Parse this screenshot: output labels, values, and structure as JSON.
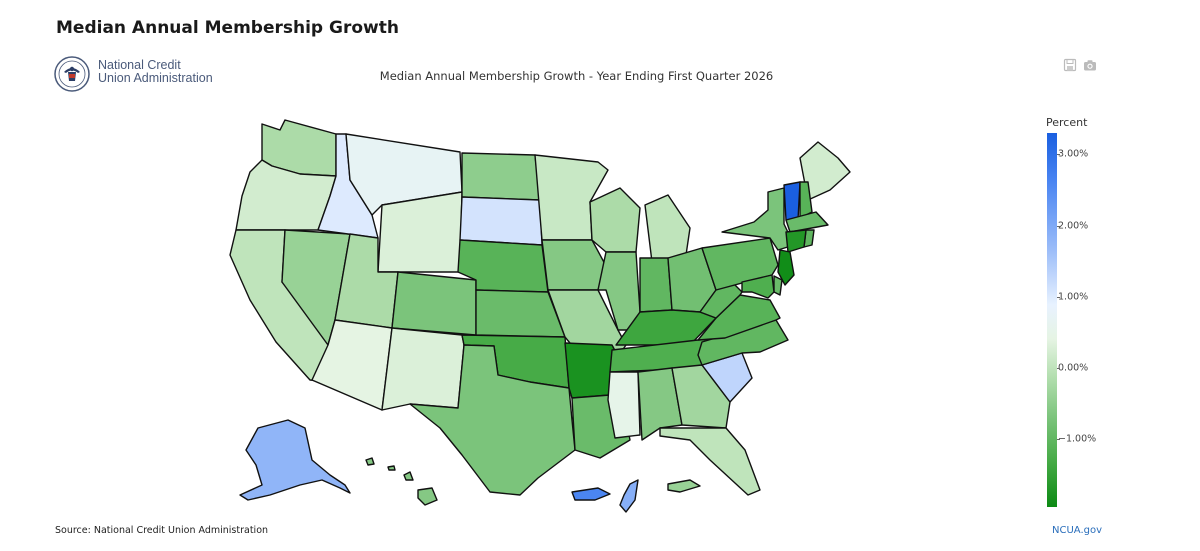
{
  "page": {
    "heading": "Median Annual Membership Growth",
    "logo_text_line1": "National Credit",
    "logo_text_line2": "Union Administration",
    "chart_title": "Median Annual Membership Growth - Year Ending First Quarter 2026",
    "source": "Source: National Credit Union Administration",
    "link": "NCUA.gov"
  },
  "toolbar": {
    "icons": [
      "save-icon",
      "camera-icon"
    ]
  },
  "chart_data": {
    "type": "choropleth",
    "colorbar": {
      "title": "Percent",
      "min": -1.95,
      "max": 3.3,
      "ticks": [
        {
          "value": 3.0,
          "label": "3.00%"
        },
        {
          "value": 2.0,
          "label": "2.00%"
        },
        {
          "value": 1.0,
          "label": "1.00%"
        },
        {
          "value": 0.0,
          "label": "0.00%"
        },
        {
          "value": -1.0,
          "label": "−1.00%"
        }
      ]
    },
    "colors": {
      "high": "#1a5fe0",
      "mid": "#e8f4f0",
      "low": "#0c8a14",
      "state_border": "#111111"
    },
    "states": [
      {
        "state": "WA",
        "value": -0.2
      },
      {
        "state": "OR",
        "value": 0.2
      },
      {
        "state": "CA",
        "value": 0.0
      },
      {
        "state": "NV",
        "value": -0.4
      },
      {
        "state": "ID",
        "value": 1.0
      },
      {
        "state": "MT",
        "value": 0.7
      },
      {
        "state": "WY",
        "value": 0.3
      },
      {
        "state": "UT",
        "value": -0.2
      },
      {
        "state": "AZ",
        "value": 0.4
      },
      {
        "state": "CO",
        "value": -0.7
      },
      {
        "state": "NM",
        "value": 0.3
      },
      {
        "state": "ND",
        "value": -0.5
      },
      {
        "state": "SD",
        "value": 1.1
      },
      {
        "state": "NE",
        "value": -1.1
      },
      {
        "state": "KS",
        "value": -0.9
      },
      {
        "state": "OK",
        "value": -1.3
      },
      {
        "state": "TX",
        "value": -0.7
      },
      {
        "state": "MN",
        "value": 0.1
      },
      {
        "state": "IA",
        "value": -0.6
      },
      {
        "state": "MO",
        "value": -0.3
      },
      {
        "state": "AR",
        "value": -1.8
      },
      {
        "state": "LA",
        "value": -0.9
      },
      {
        "state": "WI",
        "value": -0.2
      },
      {
        "state": "IL",
        "value": -0.6
      },
      {
        "state": "MI",
        "value": 0.0
      },
      {
        "state": "IN",
        "value": -1.0
      },
      {
        "state": "OH",
        "value": -0.8
      },
      {
        "state": "KY",
        "value": -1.4
      },
      {
        "state": "TN",
        "value": -1.2
      },
      {
        "state": "MS",
        "value": 0.5
      },
      {
        "state": "AL",
        "value": -0.6
      },
      {
        "state": "GA",
        "value": -0.3
      },
      {
        "state": "FL",
        "value": 0.0
      },
      {
        "state": "SC",
        "value": 1.3
      },
      {
        "state": "NC",
        "value": -1.0
      },
      {
        "state": "VA",
        "value": -1.1
      },
      {
        "state": "WV",
        "value": -1.0
      },
      {
        "state": "PA",
        "value": -1.0
      },
      {
        "state": "NY",
        "value": -0.7
      },
      {
        "state": "ME",
        "value": 0.2
      },
      {
        "state": "VT",
        "value": 3.3
      },
      {
        "state": "NH",
        "value": -1.1
      },
      {
        "state": "MA",
        "value": -0.9
      },
      {
        "state": "RI",
        "value": -1.0
      },
      {
        "state": "CT",
        "value": -1.7
      },
      {
        "state": "NJ",
        "value": -1.9
      },
      {
        "state": "DE",
        "value": -0.9
      },
      {
        "state": "MD",
        "value": -1.2
      },
      {
        "state": "AK",
        "value": 1.8
      },
      {
        "state": "HI",
        "value": -0.6
      },
      {
        "state": "PR",
        "value": 2.6
      },
      {
        "state": "VI",
        "value": -0.4
      },
      {
        "state": "GU",
        "value": 1.9
      }
    ]
  }
}
